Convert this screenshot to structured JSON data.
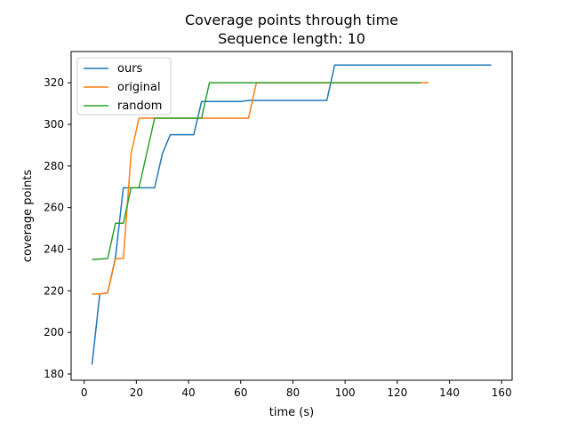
{
  "chart_data": {
    "type": "line",
    "title": "Coverage points through time",
    "subtitle": "Sequence length: 10",
    "xlabel": "time (s)",
    "ylabel": "coverage points",
    "xlim": [
      -5,
      164
    ],
    "ylim": [
      177,
      335
    ],
    "xticks": [
      0,
      20,
      40,
      60,
      80,
      100,
      120,
      140,
      160
    ],
    "yticks": [
      180,
      200,
      220,
      240,
      260,
      280,
      300,
      320
    ],
    "grid": false,
    "legend_position": "top-left",
    "series": [
      {
        "name": "ours",
        "color": "#1f77b4",
        "points": [
          [
            3,
            184.5
          ],
          [
            6,
            218.5
          ],
          [
            9,
            219
          ],
          [
            12,
            236
          ],
          [
            15,
            269.5
          ],
          [
            27,
            269.5
          ],
          [
            30,
            286
          ],
          [
            33,
            295
          ],
          [
            42,
            295
          ],
          [
            45,
            311
          ],
          [
            60,
            311
          ],
          [
            63,
            311.5
          ],
          [
            93,
            311.5
          ],
          [
            96,
            328.5
          ],
          [
            156,
            328.5
          ]
        ]
      },
      {
        "name": "original",
        "color": "#ff7f0e",
        "points": [
          [
            3,
            218.5
          ],
          [
            6,
            218.5
          ],
          [
            9,
            219
          ],
          [
            12,
            235.5
          ],
          [
            15,
            235.5
          ],
          [
            18,
            286
          ],
          [
            21,
            303
          ],
          [
            63,
            303
          ],
          [
            66,
            320
          ],
          [
            132,
            320
          ]
        ]
      },
      {
        "name": "random",
        "color": "#2ca02c",
        "points": [
          [
            3,
            235
          ],
          [
            9,
            235.5
          ],
          [
            12,
            252.5
          ],
          [
            15,
            252.5
          ],
          [
            18,
            269.5
          ],
          [
            21,
            269.5
          ],
          [
            27,
            303
          ],
          [
            45,
            303
          ],
          [
            48,
            320
          ],
          [
            129,
            320
          ]
        ]
      }
    ]
  }
}
